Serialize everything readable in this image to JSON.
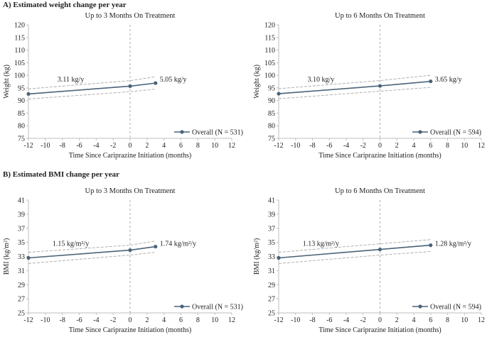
{
  "section_a": {
    "title": "A) Estimated weight change per year"
  },
  "section_b": {
    "title": "B) Estimated BMI change per year"
  },
  "colors": {
    "line": "#4a6379",
    "ci": "#a7a7a7",
    "axis": "#bfbfbf",
    "ref": "#9a9a9a"
  },
  "chart_data": [
    {
      "type": "line",
      "title": "Up to 3 Months On Treatment",
      "xlabel": "Time Since Cariprazine Initiation (months)",
      "ylabel": "Weight (kg)",
      "xlim": [
        -12,
        12
      ],
      "ylim": [
        75,
        120
      ],
      "xticks": [
        -12,
        -10,
        -8,
        -6,
        -4,
        -2,
        0,
        2,
        4,
        6,
        8,
        10,
        12
      ],
      "yticks": [
        75,
        80,
        85,
        90,
        95,
        100,
        105,
        110,
        115,
        120
      ],
      "series": [
        {
          "name": "Overall (N = 531)",
          "x": [
            -12,
            0,
            3
          ],
          "y": [
            92.6,
            95.7,
            96.9
          ]
        }
      ],
      "ci_upper": {
        "x": [
          -12,
          0,
          3
        ],
        "y": [
          94.6,
          97.9,
          99.4
        ]
      },
      "ci_lower": {
        "x": [
          -12,
          0,
          3
        ],
        "y": [
          90.6,
          93.5,
          94.5
        ]
      },
      "annotations": [
        {
          "text": "3.11 kg/y",
          "x": -7,
          "y": 97.5
        },
        {
          "text": "5.05 kg/y",
          "x": 3.5,
          "y": 97.5
        }
      ]
    },
    {
      "type": "line",
      "title": "Up to 6 Months On Treatment",
      "xlabel": "Time Since Cariprazine Initiation (months)",
      "ylabel": "Weight (kg)",
      "xlim": [
        -12,
        12
      ],
      "ylim": [
        75,
        120
      ],
      "xticks": [
        -12,
        -10,
        -8,
        -6,
        -4,
        -2,
        0,
        2,
        4,
        6,
        8,
        10,
        12
      ],
      "yticks": [
        75,
        80,
        85,
        90,
        95,
        100,
        105,
        110,
        115,
        120
      ],
      "series": [
        {
          "name": "Overall (N = 594)",
          "x": [
            -12,
            0,
            6
          ],
          "y": [
            92.7,
            95.8,
            97.6
          ]
        }
      ],
      "ci_upper": {
        "x": [
          -12,
          0,
          6
        ],
        "y": [
          94.7,
          97.9,
          100.0
        ]
      },
      "ci_lower": {
        "x": [
          -12,
          0,
          6
        ],
        "y": [
          90.7,
          93.7,
          95.2
        ]
      },
      "annotations": [
        {
          "text": "3.10 kg/y",
          "x": -7,
          "y": 97.5
        },
        {
          "text": "3.65 kg/y",
          "x": 6.5,
          "y": 97.5
        }
      ]
    },
    {
      "type": "line",
      "title": "Up to 3 Months On Treatment",
      "xlabel": "Time Since Cariprazine Initiation (months)",
      "ylabel": "BMI (kg/m²)",
      "xlim": [
        -12,
        12
      ],
      "ylim": [
        25,
        41
      ],
      "xticks": [
        -12,
        -10,
        -8,
        -6,
        -4,
        -2,
        0,
        2,
        4,
        6,
        8,
        10,
        12
      ],
      "yticks": [
        25,
        27,
        29,
        31,
        33,
        35,
        37,
        39,
        41
      ],
      "series": [
        {
          "name": "Overall (N = 531)",
          "x": [
            -12,
            0,
            3
          ],
          "y": [
            32.8,
            33.9,
            34.4
          ]
        }
      ],
      "ci_upper": {
        "x": [
          -12,
          0,
          3
        ],
        "y": [
          33.6,
          34.6,
          35.2
        ]
      },
      "ci_lower": {
        "x": [
          -12,
          0,
          3
        ],
        "y": [
          32.0,
          33.2,
          33.6
        ]
      },
      "annotations": [
        {
          "text": "1.15 kg/m²/y",
          "x": -7,
          "y": 34.5
        },
        {
          "text": "1.74 kg/m²/y",
          "x": 3.5,
          "y": 34.5
        }
      ]
    },
    {
      "type": "line",
      "title": "Up to 6 Months On Treatment",
      "xlabel": "Time Since Cariprazine Initiation (months)",
      "ylabel": "BMI (kg/m²)",
      "xlim": [
        -12,
        12
      ],
      "ylim": [
        25,
        41
      ],
      "xticks": [
        -12,
        -10,
        -8,
        -6,
        -4,
        -2,
        0,
        2,
        4,
        6,
        8,
        10,
        12
      ],
      "yticks": [
        25,
        27,
        29,
        31,
        33,
        35,
        37,
        39,
        41
      ],
      "series": [
        {
          "name": "Overall (N = 594)",
          "x": [
            -12,
            0,
            6
          ],
          "y": [
            32.8,
            34.0,
            34.6
          ]
        }
      ],
      "ci_upper": {
        "x": [
          -12,
          0,
          6
        ],
        "y": [
          33.6,
          34.8,
          35.4
        ]
      },
      "ci_lower": {
        "x": [
          -12,
          0,
          6
        ],
        "y": [
          32.0,
          33.2,
          33.7
        ]
      },
      "annotations": [
        {
          "text": "1.13 kg/m²/y",
          "x": -7,
          "y": 34.5
        },
        {
          "text": "1.28 kg/m²/y",
          "x": 6.5,
          "y": 34.5
        }
      ]
    }
  ]
}
